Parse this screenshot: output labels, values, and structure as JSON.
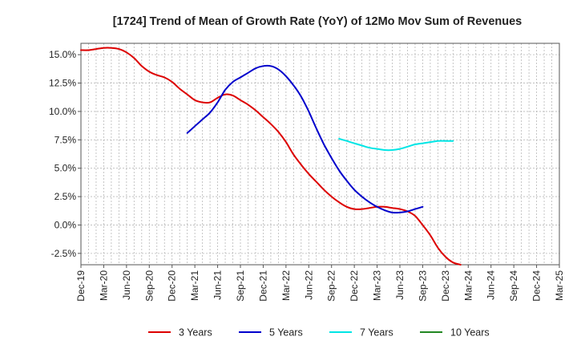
{
  "chart_data": {
    "type": "line",
    "title": "[1724]  Trend of Mean of Growth Rate (YoY) of 12Mo Mov Sum of Revenues",
    "xlabel": "",
    "ylabel": "",
    "ylim": [
      -3.5,
      16.0
    ],
    "y_ticks": [
      {
        "value": 15.0,
        "label": "15.0%"
      },
      {
        "value": 12.5,
        "label": "12.5%"
      },
      {
        "value": 10.0,
        "label": "10.0%"
      },
      {
        "value": 7.5,
        "label": "7.5%"
      },
      {
        "value": 5.0,
        "label": "5.0%"
      },
      {
        "value": 2.5,
        "label": "2.5%"
      },
      {
        "value": 0.0,
        "label": "0.0%"
      },
      {
        "value": -2.5,
        "label": "-2.5%"
      }
    ],
    "x_range": [
      0,
      63
    ],
    "x_ticks": [
      {
        "value": 0,
        "label": "Dec-19"
      },
      {
        "value": 3,
        "label": "Mar-20"
      },
      {
        "value": 6,
        "label": "Jun-20"
      },
      {
        "value": 9,
        "label": "Sep-20"
      },
      {
        "value": 12,
        "label": "Dec-20"
      },
      {
        "value": 15,
        "label": "Mar-21"
      },
      {
        "value": 18,
        "label": "Jun-21"
      },
      {
        "value": 21,
        "label": "Sep-21"
      },
      {
        "value": 24,
        "label": "Dec-21"
      },
      {
        "value": 27,
        "label": "Mar-22"
      },
      {
        "value": 30,
        "label": "Jun-22"
      },
      {
        "value": 33,
        "label": "Sep-22"
      },
      {
        "value": 36,
        "label": "Dec-22"
      },
      {
        "value": 39,
        "label": "Mar-23"
      },
      {
        "value": 42,
        "label": "Jun-23"
      },
      {
        "value": 45,
        "label": "Sep-23"
      },
      {
        "value": 48,
        "label": "Dec-23"
      },
      {
        "value": 51,
        "label": "Mar-24"
      },
      {
        "value": 54,
        "label": "Jun-24"
      },
      {
        "value": 57,
        "label": "Sep-24"
      },
      {
        "value": 60,
        "label": "Dec-24"
      },
      {
        "value": 63,
        "label": "Mar-25"
      }
    ],
    "series": [
      {
        "name": "3 Years",
        "color": "#dd0000",
        "points": [
          [
            0,
            15.4
          ],
          [
            1,
            15.4
          ],
          [
            2,
            15.5
          ],
          [
            3,
            15.6
          ],
          [
            4,
            15.6
          ],
          [
            5,
            15.5
          ],
          [
            6,
            15.2
          ],
          [
            7,
            14.7
          ],
          [
            8,
            14.0
          ],
          [
            9,
            13.5
          ],
          [
            10,
            13.2
          ],
          [
            11,
            13.0
          ],
          [
            12,
            12.6
          ],
          [
            13,
            12.0
          ],
          [
            14,
            11.5
          ],
          [
            15,
            11.0
          ],
          [
            16,
            10.8
          ],
          [
            17,
            10.8
          ],
          [
            18,
            11.2
          ],
          [
            19,
            11.5
          ],
          [
            20,
            11.4
          ],
          [
            21,
            11.0
          ],
          [
            22,
            10.6
          ],
          [
            23,
            10.1
          ],
          [
            24,
            9.5
          ],
          [
            25,
            8.9
          ],
          [
            26,
            8.2
          ],
          [
            27,
            7.3
          ],
          [
            28,
            6.2
          ],
          [
            29,
            5.3
          ],
          [
            30,
            4.5
          ],
          [
            31,
            3.8
          ],
          [
            32,
            3.1
          ],
          [
            33,
            2.5
          ],
          [
            34,
            2.0
          ],
          [
            35,
            1.6
          ],
          [
            36,
            1.4
          ],
          [
            37,
            1.4
          ],
          [
            38,
            1.5
          ],
          [
            39,
            1.6
          ],
          [
            40,
            1.6
          ],
          [
            41,
            1.5
          ],
          [
            42,
            1.4
          ],
          [
            43,
            1.2
          ],
          [
            44,
            0.8
          ],
          [
            45,
            0.0
          ],
          [
            46,
            -0.9
          ],
          [
            47,
            -2.0
          ],
          [
            48,
            -2.8
          ],
          [
            49,
            -3.3
          ],
          [
            50,
            -3.5
          ]
        ]
      },
      {
        "name": "5 Years",
        "color": "#0000cc",
        "points": [
          [
            14,
            8.1
          ],
          [
            15,
            8.7
          ],
          [
            16,
            9.3
          ],
          [
            17,
            9.9
          ],
          [
            18,
            10.8
          ],
          [
            19,
            11.9
          ],
          [
            20,
            12.6
          ],
          [
            21,
            13.0
          ],
          [
            22,
            13.4
          ],
          [
            23,
            13.8
          ],
          [
            24,
            14.0
          ],
          [
            25,
            14.0
          ],
          [
            26,
            13.7
          ],
          [
            27,
            13.1
          ],
          [
            28,
            12.3
          ],
          [
            29,
            11.3
          ],
          [
            30,
            10.0
          ],
          [
            31,
            8.5
          ],
          [
            32,
            7.1
          ],
          [
            33,
            5.9
          ],
          [
            34,
            4.8
          ],
          [
            35,
            3.9
          ],
          [
            36,
            3.1
          ],
          [
            37,
            2.5
          ],
          [
            38,
            2.0
          ],
          [
            39,
            1.6
          ],
          [
            40,
            1.3
          ],
          [
            41,
            1.1
          ],
          [
            42,
            1.1
          ],
          [
            43,
            1.2
          ],
          [
            44,
            1.4
          ],
          [
            45,
            1.6
          ]
        ]
      },
      {
        "name": "7 Years",
        "color": "#00e5e5",
        "points": [
          [
            34,
            7.6
          ],
          [
            35,
            7.4
          ],
          [
            36,
            7.2
          ],
          [
            37,
            7.0
          ],
          [
            38,
            6.8
          ],
          [
            39,
            6.7
          ],
          [
            40,
            6.6
          ],
          [
            41,
            6.6
          ],
          [
            42,
            6.7
          ],
          [
            43,
            6.9
          ],
          [
            44,
            7.1
          ],
          [
            45,
            7.2
          ],
          [
            46,
            7.3
          ],
          [
            47,
            7.4
          ],
          [
            48,
            7.4
          ],
          [
            49,
            7.4
          ]
        ]
      },
      {
        "name": "10 Years",
        "color": "#228822",
        "points": []
      }
    ],
    "legend_position": "bottom",
    "grid": true
  }
}
